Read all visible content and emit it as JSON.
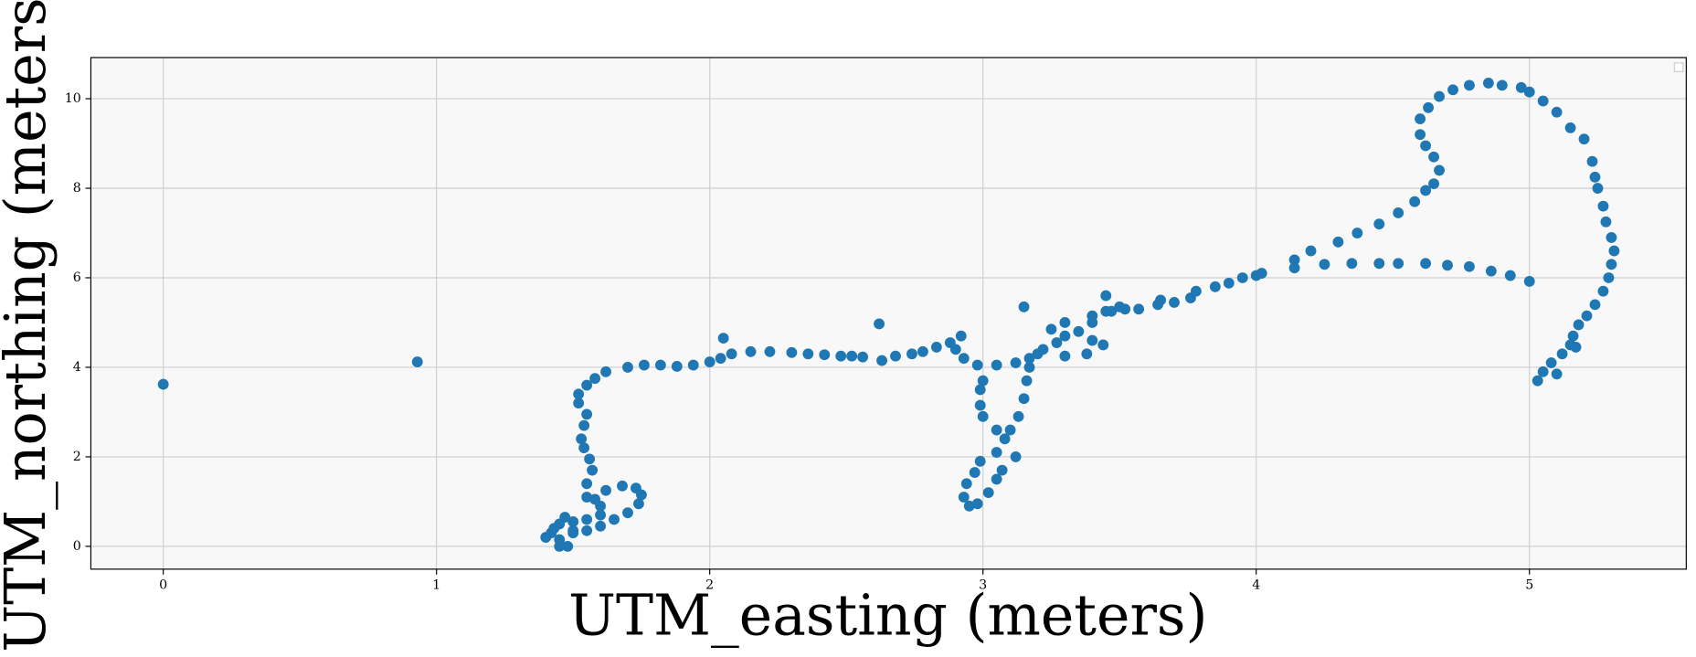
{
  "chart_data": {
    "type": "scatter",
    "x_label": "UTM_easting (meters)",
    "y_label": "UTM_northing (meters)",
    "color": "#1f77b4",
    "grid": true,
    "xlim": [
      -0.265,
      5.574
    ],
    "ylim": [
      -0.51,
      10.92
    ],
    "xticks": [
      0,
      1,
      2,
      3,
      4,
      5
    ],
    "yticks": [
      0,
      2,
      4,
      6,
      8,
      10
    ],
    "x": [
      0,
      0.93,
      1.5,
      1.55,
      1.6,
      1.55,
      1.55,
      1.57,
      1.56,
      1.54,
      1.53,
      1.54,
      1.55,
      1.52,
      1.52,
      1.55,
      1.58,
      1.62,
      1.7,
      1.76,
      1.82,
      1.88,
      1.94,
      2.0,
      2.04,
      2.08,
      2.15,
      2.22,
      2.3,
      2.36,
      2.42,
      2.48,
      2.52,
      2.56,
      2.63,
      2.68,
      2.74,
      2.78,
      2.83,
      2.88,
      2.92,
      2.9,
      2.93,
      2.98,
      3.05,
      3.12,
      3.17,
      3.22,
      3.27,
      3.3,
      3.35,
      3.4,
      3.44,
      3.38,
      3.3,
      3.2,
      3.17,
      3.16,
      3.15,
      3.13,
      3.1,
      3.12,
      3.07,
      3.05,
      3.02,
      2.98,
      2.95,
      2.93,
      2.94,
      2.97,
      2.99,
      3.05,
      3.08,
      3.05,
      3.0,
      2.99,
      2.99,
      3.0,
      3.4,
      3.47,
      3.52,
      3.57,
      3.64,
      3.7,
      3.76,
      3.85,
      3.95,
      4.02,
      4.14,
      4.2,
      4.3,
      4.37,
      4.45,
      4.52,
      4.58,
      4.62,
      4.65,
      4.67,
      4.65,
      4.62,
      4.6,
      4.6,
      4.63,
      4.67,
      4.72,
      4.78,
      4.85,
      4.9,
      4.97,
      5.0,
      5.05,
      5.1,
      5.15,
      5.2,
      5.23,
      5.24,
      5.25,
      5.27,
      5.28,
      5.3,
      5.31,
      5.3,
      5.29,
      5.27,
      5.24,
      5.21,
      5.18,
      5.16,
      5.15,
      5.12,
      5.08,
      5.05,
      5.03,
      5.1,
      5.17,
      5.0,
      4.93,
      4.86,
      4.78,
      4.7,
      4.62,
      4.52,
      4.45,
      4.35,
      4.25,
      4.14,
      4.0,
      3.9,
      3.78,
      3.65,
      3.5,
      3.45,
      3.4,
      3.3,
      3.25,
      3.15,
      3.45,
      2.62,
      2.05,
      1.4,
      1.42,
      1.45,
      1.48,
      1.45,
      1.5,
      1.55,
      1.6,
      1.65,
      1.7,
      1.74,
      1.75,
      1.73,
      1.68,
      1.62,
      1.58,
      1.6,
      1.5,
      1.45,
      1.43,
      1.47
    ],
    "values": [
      3.62,
      4.12,
      0.35,
      0.6,
      0.9,
      1.1,
      1.4,
      1.7,
      1.95,
      2.2,
      2.4,
      2.7,
      2.95,
      3.2,
      3.4,
      3.6,
      3.75,
      3.9,
      4.0,
      4.05,
      4.05,
      4.02,
      4.05,
      4.12,
      4.2,
      4.3,
      4.35,
      4.35,
      4.33,
      4.3,
      4.28,
      4.25,
      4.25,
      4.23,
      4.15,
      4.25,
      4.3,
      4.35,
      4.45,
      4.55,
      4.7,
      4.4,
      4.2,
      4.05,
      4.05,
      4.1,
      4.2,
      4.4,
      4.55,
      4.7,
      4.8,
      4.6,
      4.5,
      4.3,
      4.25,
      4.3,
      4.0,
      3.7,
      3.3,
      2.9,
      2.6,
      2.0,
      1.7,
      1.5,
      1.2,
      0.95,
      0.9,
      1.1,
      1.4,
      1.65,
      1.9,
      2.1,
      2.4,
      2.6,
      2.9,
      3.15,
      3.5,
      3.7,
      5.0,
      5.25,
      5.3,
      5.3,
      5.4,
      5.45,
      5.55,
      5.8,
      6.0,
      6.1,
      6.4,
      6.6,
      6.8,
      7.0,
      7.2,
      7.45,
      7.7,
      7.95,
      8.1,
      8.4,
      8.7,
      8.95,
      9.2,
      9.55,
      9.8,
      10.05,
      10.2,
      10.3,
      10.35,
      10.3,
      10.25,
      10.15,
      9.95,
      9.7,
      9.35,
      9.1,
      8.6,
      8.25,
      8.0,
      7.6,
      7.25,
      6.9,
      6.6,
      6.3,
      6.0,
      5.7,
      5.4,
      5.15,
      4.95,
      4.7,
      4.5,
      4.3,
      4.1,
      3.9,
      3.7,
      3.85,
      4.45,
      5.92,
      6.05,
      6.15,
      6.25,
      6.28,
      6.32,
      6.32,
      6.32,
      6.32,
      6.3,
      6.22,
      6.05,
      5.88,
      5.7,
      5.5,
      5.35,
      5.25,
      5.15,
      5.0,
      4.85,
      5.35,
      5.6,
      4.97,
      4.65,
      0.2,
      0.3,
      0.15,
      0.0,
      0.0,
      0.3,
      0.35,
      0.45,
      0.6,
      0.75,
      0.95,
      1.15,
      1.3,
      1.35,
      1.25,
      1.05,
      0.7,
      0.55,
      0.5,
      0.4,
      0.65
    ]
  }
}
